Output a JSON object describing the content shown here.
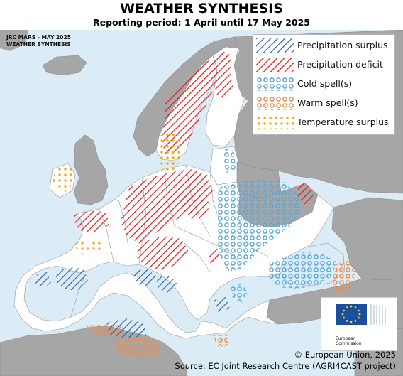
{
  "header": {
    "title": "WEATHER SYNTHESIS",
    "subtitle": "Reporting period: 1 April until 17 May 2025"
  },
  "map": {
    "tag_line1": "JRC MARS - MAY 2025",
    "tag_line2": "WEATHER SYNTHESIS",
    "colors": {
      "sea": "#dbecf7",
      "land_eu": "#ffffff",
      "land_non_eu": "#a6a6a6",
      "precipitation_surplus": "#2e5ea8",
      "precipitation_deficit": "#e02020",
      "cold_spell": "#5aa7d6",
      "warm_spell": "#f08a4b",
      "temperature_surplus": "#f0a818"
    }
  },
  "legend": {
    "items": [
      {
        "label": "Precipitation surplus",
        "pattern": "hatch-blue"
      },
      {
        "label": "Precipitation deficit",
        "pattern": "hatch-red"
      },
      {
        "label": "Cold spell(s)",
        "pattern": "circles-blue"
      },
      {
        "label": "Warm spell(s)",
        "pattern": "circles-orange"
      },
      {
        "label": "Temperature surplus",
        "pattern": "dots-yellow"
      }
    ]
  },
  "logo": {
    "line1": "European",
    "line2": "Commission"
  },
  "footer": {
    "copyright": "© European Union, 2025",
    "source": "Source: EC Joint Research Centre (AGRI4CAST project)"
  }
}
